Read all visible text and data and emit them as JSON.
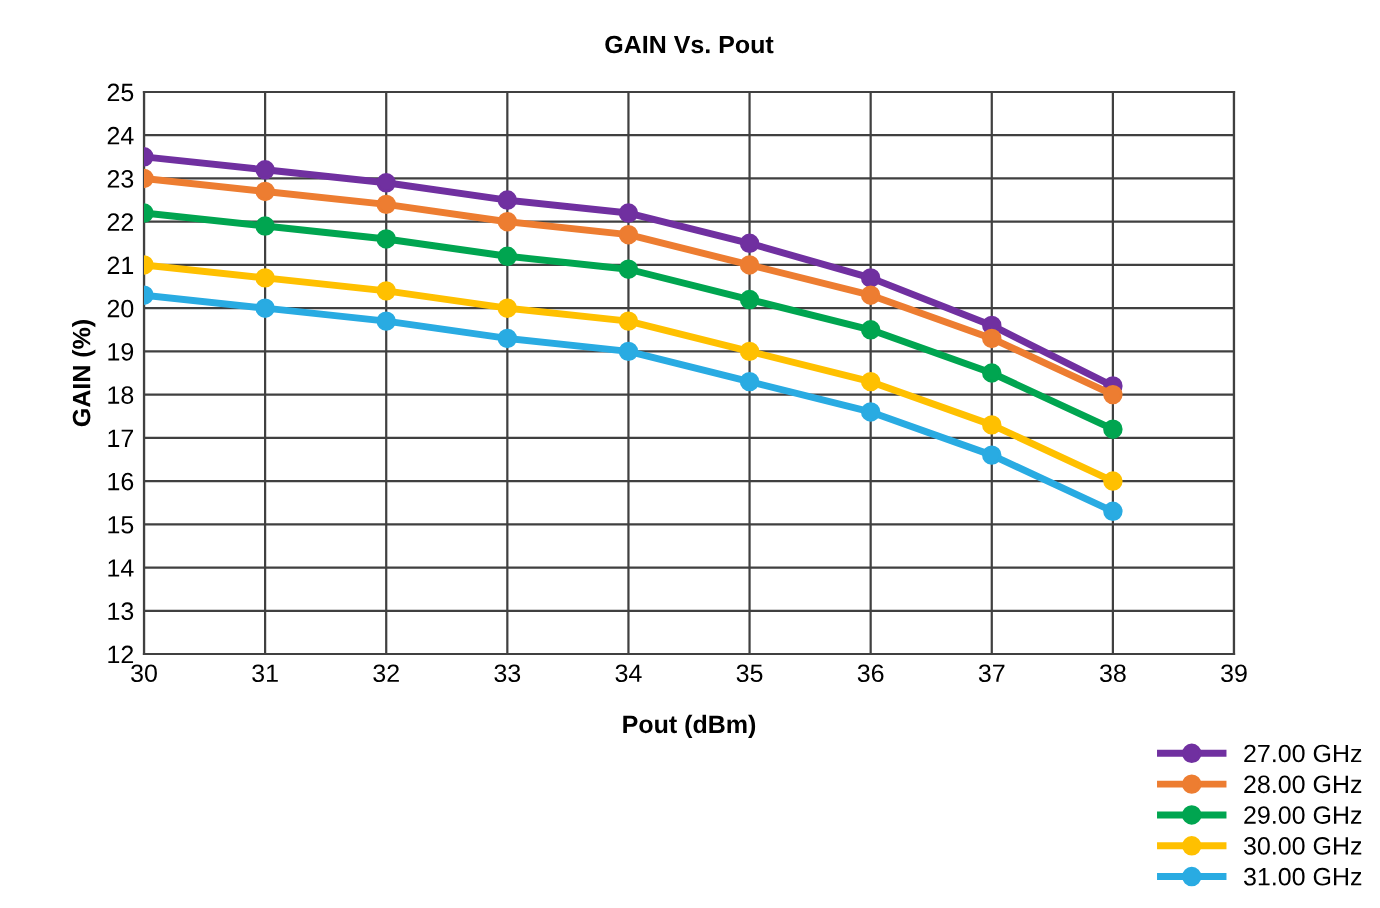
{
  "chart_data": {
    "type": "line",
    "title": "GAIN Vs. Pout",
    "xlabel": "Pout (dBm)",
    "ylabel": "GAIN (%)",
    "x": [
      30,
      31,
      32,
      33,
      34,
      35,
      36,
      37,
      38
    ],
    "series": [
      {
        "name": "27.00 GHz",
        "color": "#7030a0",
        "values": [
          23.5,
          23.2,
          22.9,
          22.5,
          22.2,
          21.5,
          20.7,
          19.6,
          18.2
        ]
      },
      {
        "name": "28.00 GHz",
        "color": "#ed7d31",
        "values": [
          23.0,
          22.7,
          22.4,
          22.0,
          21.7,
          21.0,
          20.3,
          19.3,
          18.0
        ]
      },
      {
        "name": "29.00 GHz",
        "color": "#00a550",
        "values": [
          22.2,
          21.9,
          21.6,
          21.2,
          20.9,
          20.2,
          19.5,
          18.5,
          17.2
        ]
      },
      {
        "name": "30.00 GHz",
        "color": "#ffc000",
        "values": [
          21.0,
          20.7,
          20.4,
          20.0,
          19.7,
          19.0,
          18.3,
          17.3,
          16.0
        ]
      },
      {
        "name": "31.00 GHz",
        "color": "#29abe2",
        "values": [
          20.3,
          20.0,
          19.7,
          19.3,
          19.0,
          18.3,
          17.6,
          16.6,
          15.3
        ]
      }
    ],
    "xlim": [
      30,
      39
    ],
    "xticks": [
      30,
      31,
      32,
      33,
      34,
      35,
      36,
      37,
      38,
      39
    ],
    "ylim": [
      12,
      25
    ],
    "yticks": [
      12,
      13,
      14,
      15,
      16,
      17,
      18,
      19,
      20,
      21,
      22,
      23,
      24,
      25
    ],
    "grid": true,
    "legend": "bottom right",
    "marker": "circle",
    "line_style": "solid"
  }
}
